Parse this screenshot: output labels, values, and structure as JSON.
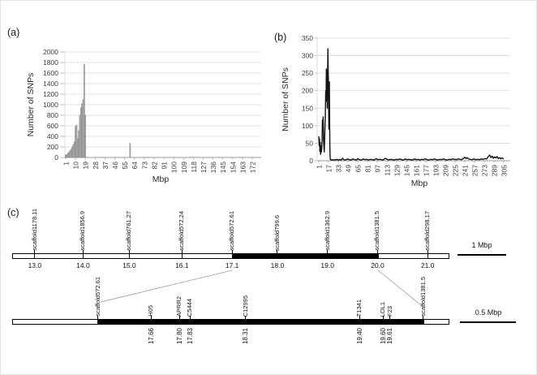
{
  "figure": {
    "panel_a_label": "(a)",
    "panel_b_label": "(b)",
    "panel_c_label": "(c)"
  },
  "chart_data": [
    {
      "id": "a",
      "type": "bar",
      "title": "",
      "xlabel": "Mbp",
      "ylabel": "Number of SNPs",
      "ylim": [
        0,
        2000
      ],
      "ytick_step": 200,
      "xlim": [
        0,
        178
      ],
      "xticks": [
        1,
        10,
        19,
        28,
        37,
        46,
        55,
        64,
        73,
        82,
        91,
        100,
        109,
        118,
        127,
        136,
        145,
        154,
        163,
        172
      ],
      "grid": true,
      "bar_color": "#a9a9a9",
      "bar_edge_color": "#7f7f7f",
      "categories": [
        1,
        2,
        3,
        4,
        5,
        6,
        7,
        8,
        9,
        10,
        11,
        12,
        13,
        14,
        15,
        16,
        17,
        18,
        19,
        60
      ],
      "values": [
        50,
        60,
        80,
        100,
        130,
        160,
        200,
        250,
        300,
        590,
        615,
        360,
        510,
        800,
        945,
        1020,
        1100,
        1765,
        800,
        265
      ]
    },
    {
      "id": "b",
      "type": "line",
      "title": "",
      "xlabel": "Mbp",
      "ylabel": "Number of SNPs",
      "ylim": [
        0,
        350
      ],
      "ytick_step": 50,
      "xlim": [
        0,
        312
      ],
      "xticks": [
        1,
        17,
        33,
        49,
        65,
        81,
        97,
        113,
        129,
        145,
        161,
        177,
        193,
        209,
        225,
        241,
        257,
        273,
        289,
        305
      ],
      "grid": true,
      "line_color": "#141414",
      "points": [
        [
          1,
          70
        ],
        [
          1.6,
          44
        ],
        [
          2.2,
          62
        ],
        [
          2.8,
          26
        ],
        [
          3.4,
          52
        ],
        [
          4,
          18
        ],
        [
          4.6,
          42
        ],
        [
          5.2,
          25
        ],
        [
          5.8,
          34
        ],
        [
          6.4,
          58
        ],
        [
          7,
          116
        ],
        [
          7.6,
          86
        ],
        [
          8.2,
          125
        ],
        [
          8.8,
          58
        ],
        [
          9.4,
          42
        ],
        [
          10,
          25
        ],
        [
          10.6,
          62
        ],
        [
          11.2,
          95
        ],
        [
          11.8,
          130
        ],
        [
          12.4,
          200
        ],
        [
          13,
          170
        ],
        [
          13.4,
          262
        ],
        [
          13.8,
          228
        ],
        [
          14.2,
          255
        ],
        [
          14.6,
          180
        ],
        [
          15,
          150
        ],
        [
          15.4,
          246
        ],
        [
          16,
          320
        ],
        [
          16.4,
          262
        ],
        [
          16.8,
          228
        ],
        [
          17.2,
          150
        ],
        [
          17.6,
          90
        ],
        [
          18,
          160
        ],
        [
          18.4,
          225
        ],
        [
          18.8,
          120
        ],
        [
          19.2,
          40
        ],
        [
          19.6,
          10
        ],
        [
          20,
          4
        ],
        [
          21,
          2
        ],
        [
          23,
          3
        ],
        [
          25,
          2
        ],
        [
          27,
          3
        ],
        [
          29,
          2
        ],
        [
          31,
          4
        ],
        [
          33,
          2
        ],
        [
          35,
          3
        ],
        [
          38,
          2
        ],
        [
          40,
          7
        ],
        [
          42,
          3
        ],
        [
          45,
          2
        ],
        [
          48,
          5
        ],
        [
          51,
          3
        ],
        [
          54,
          2
        ],
        [
          57,
          5
        ],
        [
          60,
          3
        ],
        [
          63,
          2
        ],
        [
          65,
          6
        ],
        [
          68,
          3
        ],
        [
          71,
          2
        ],
        [
          74,
          5
        ],
        [
          77,
          3
        ],
        [
          80,
          4
        ],
        [
          83,
          2
        ],
        [
          86,
          4
        ],
        [
          89,
          3
        ],
        [
          92,
          2
        ],
        [
          95,
          6
        ],
        [
          98,
          3
        ],
        [
          101,
          4
        ],
        [
          104,
          3
        ],
        [
          107,
          2
        ],
        [
          110,
          7
        ],
        [
          113,
          4
        ],
        [
          116,
          2
        ],
        [
          119,
          4
        ],
        [
          122,
          3
        ],
        [
          125,
          2
        ],
        [
          128,
          4
        ],
        [
          131,
          3
        ],
        [
          134,
          5
        ],
        [
          137,
          3
        ],
        [
          140,
          2
        ],
        [
          143,
          5
        ],
        [
          146,
          3
        ],
        [
          149,
          4
        ],
        [
          152,
          3
        ],
        [
          155,
          2
        ],
        [
          158,
          5
        ],
        [
          161,
          3
        ],
        [
          164,
          4
        ],
        [
          167,
          2
        ],
        [
          170,
          4
        ],
        [
          173,
          3
        ],
        [
          176,
          5
        ],
        [
          179,
          3
        ],
        [
          182,
          2
        ],
        [
          185,
          4
        ],
        [
          188,
          3
        ],
        [
          191,
          5
        ],
        [
          194,
          3
        ],
        [
          197,
          2
        ],
        [
          200,
          4
        ],
        [
          203,
          3
        ],
        [
          206,
          5
        ],
        [
          209,
          3
        ],
        [
          212,
          2
        ],
        [
          215,
          4
        ],
        [
          218,
          3
        ],
        [
          221,
          5
        ],
        [
          224,
          4
        ],
        [
          227,
          3
        ],
        [
          230,
          5
        ],
        [
          233,
          4
        ],
        [
          236,
          3
        ],
        [
          239,
          7
        ],
        [
          241,
          10
        ],
        [
          243,
          6
        ],
        [
          245,
          9
        ],
        [
          247,
          5
        ],
        [
          250,
          4
        ],
        [
          253,
          3
        ],
        [
          256,
          5
        ],
        [
          259,
          3
        ],
        [
          262,
          4
        ],
        [
          265,
          3
        ],
        [
          268,
          5
        ],
        [
          271,
          4
        ],
        [
          274,
          6
        ],
        [
          277,
          5
        ],
        [
          280,
          13
        ],
        [
          282,
          16
        ],
        [
          284,
          9
        ],
        [
          286,
          13
        ],
        [
          288,
          7
        ],
        [
          290,
          11
        ],
        [
          292,
          8
        ],
        [
          294,
          12
        ],
        [
          296,
          6
        ],
        [
          298,
          9
        ],
        [
          300,
          6
        ],
        [
          302,
          8
        ],
        [
          305,
          5
        ]
      ]
    }
  ],
  "genetic_map": {
    "scale_bar_top": "1 Mbp",
    "scale_bar_bottom": "0.5 Mbp",
    "top_bar": {
      "region_start_pct": 50.3,
      "region_end_pct": 83.9,
      "markers": [
        {
          "name": "scaffold1178.11",
          "position": "13.0",
          "pct": 5.0
        },
        {
          "name": "scaffold1856.9",
          "position": "14.0",
          "pct": 16.1
        },
        {
          "name": "scaffold761.27",
          "position": "15.0",
          "pct": 26.7
        },
        {
          "name": "scaffold572.24",
          "position": "16.1",
          "pct": 38.8
        },
        {
          "name": "scaffold572.61",
          "position": "17.1",
          "pct": 50.3
        },
        {
          "name": "scaffold799.6",
          "position": "18.0",
          "pct": 60.7
        },
        {
          "name": "scaffold1362.9",
          "position": "19.0",
          "pct": 72.2
        },
        {
          "name": "scaffold1381.5",
          "position": "20.0",
          "pct": 83.7
        },
        {
          "name": "scaffold298.17",
          "position": "21.0",
          "pct": 95.2
        }
      ]
    },
    "bottom_bar": {
      "region_start_pct": 19.5,
      "region_end_pct": 94.4,
      "markers": [
        {
          "name": "scaffold572.61",
          "position": "",
          "pct": 19.5
        },
        {
          "name": "H05",
          "position": "17.66",
          "pct": 31.7
        },
        {
          "name": "APRR2",
          "position": "17.80",
          "pct": 38.2
        },
        {
          "name": "C5444",
          "position": "17.83",
          "pct": 40.6
        },
        {
          "name": "C12995",
          "position": "18.31",
          "pct": 53.4
        },
        {
          "name": "T1341",
          "position": "19.40",
          "pct": 79.6
        },
        {
          "name": "LOL1",
          "position": "19.60",
          "pct": 85.0
        },
        {
          "name": "F23",
          "position": "19.61",
          "pct": 86.5
        },
        {
          "name": "scaffold1381.5",
          "position": "",
          "pct": 94.2
        }
      ]
    },
    "connectors": [
      {
        "from_position": "17.1",
        "to_name": "scaffold572.61"
      },
      {
        "from_position": "20.0",
        "to_name": "scaffold1381.5"
      }
    ]
  }
}
